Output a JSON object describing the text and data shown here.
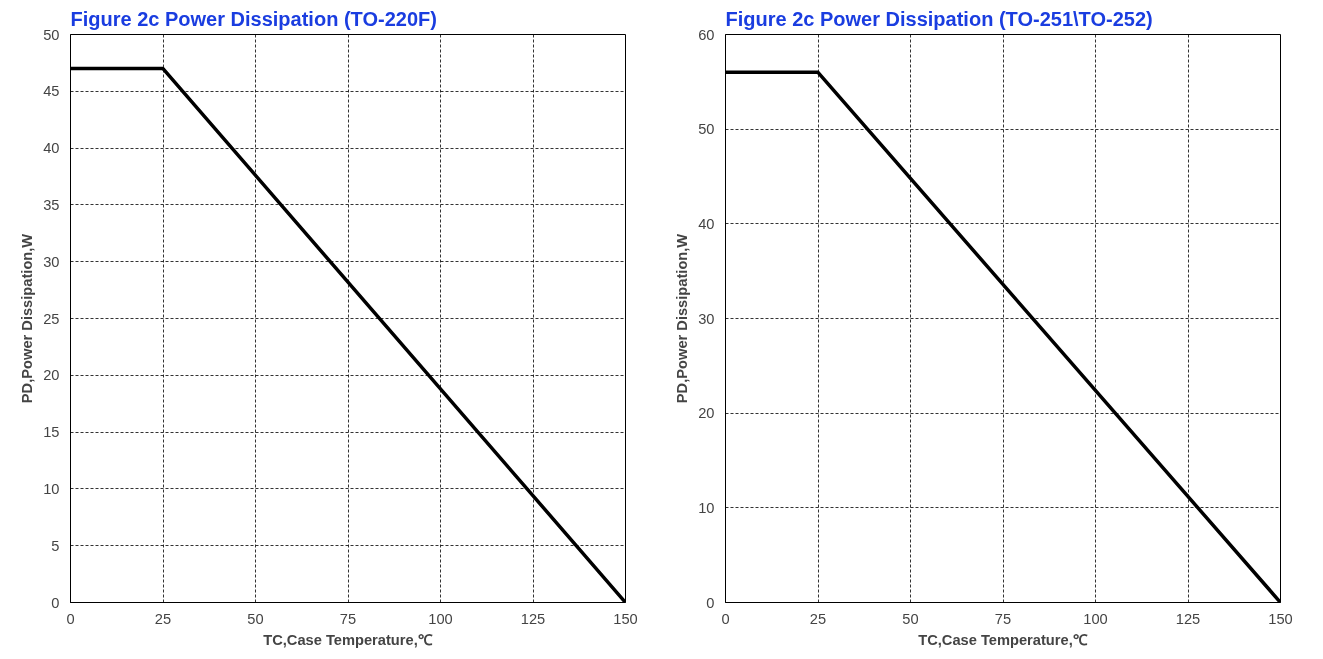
{
  "chart_data": [
    {
      "type": "line",
      "title": "Figure 2c Power Dissipation (TO-220F)",
      "xlabel": "TC,Case Temperature,℃",
      "ylabel": "PD,Power Dissipation,W",
      "x": [
        0,
        25,
        150
      ],
      "series": [
        {
          "color": "#000000",
          "values": [
            47,
            47,
            0
          ]
        }
      ],
      "xlim": [
        0,
        150
      ],
      "ylim": [
        0,
        50
      ],
      "xticks": [
        0,
        25,
        50,
        75,
        100,
        125,
        150
      ],
      "yticks": [
        0,
        5,
        10,
        15,
        20,
        25,
        30,
        35,
        40,
        45,
        50
      ],
      "grid": true,
      "marker": "none",
      "line_style": "solid"
    },
    {
      "type": "line",
      "title": "Figure 2c Power Dissipation (TO-251\\TO-252)",
      "xlabel": "TC,Case Temperature,℃",
      "ylabel": "PD,Power Dissipation,W",
      "x": [
        0,
        25,
        150
      ],
      "series": [
        {
          "color": "#000000",
          "values": [
            56,
            56,
            0
          ]
        }
      ],
      "xlim": [
        0,
        150
      ],
      "ylim": [
        0,
        60
      ],
      "xticks": [
        0,
        25,
        50,
        75,
        100,
        125,
        150
      ],
      "yticks": [
        0,
        10,
        20,
        30,
        40,
        50,
        60
      ],
      "grid": true,
      "marker": "none",
      "line_style": "solid"
    }
  ]
}
